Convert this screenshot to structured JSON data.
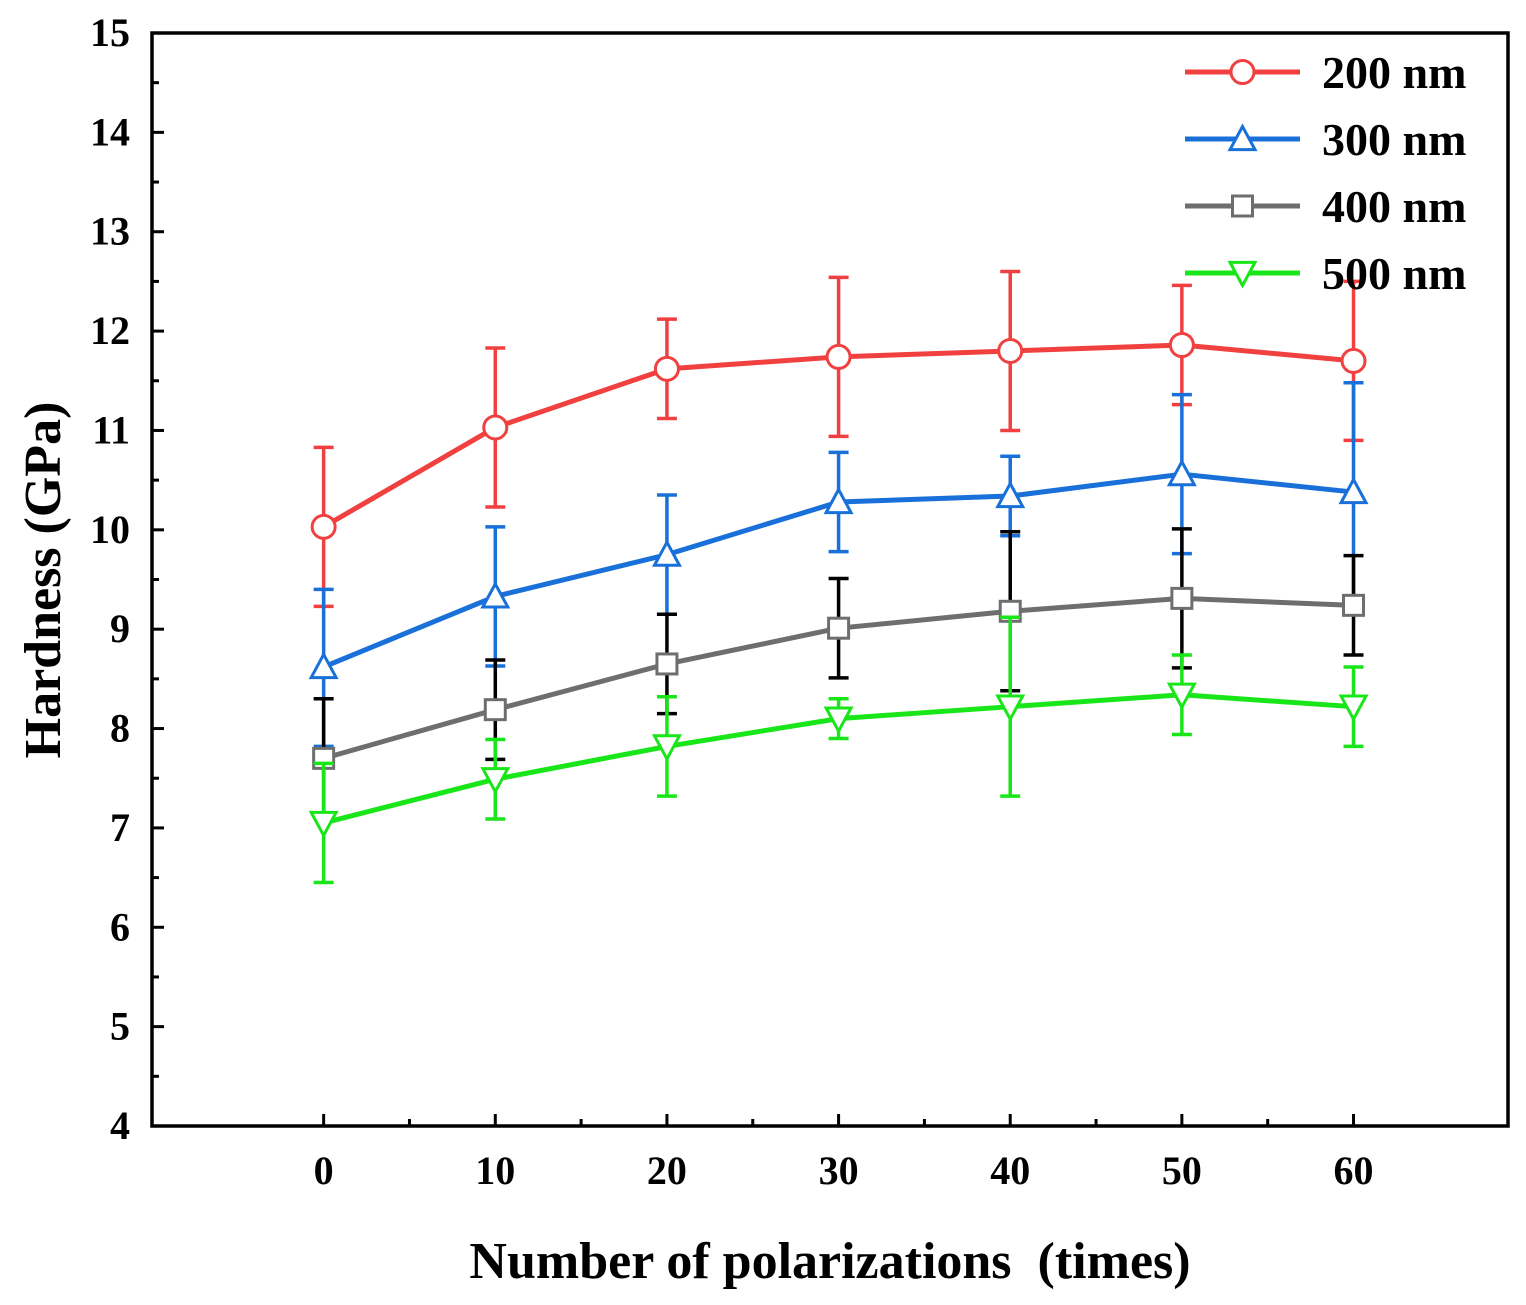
{
  "chart_data": {
    "type": "line",
    "xlabel": "Number of polarizations  (times)",
    "ylabel": "Hardness (GPa)",
    "xlim": [
      -10,
      69
    ],
    "ylim": [
      4,
      15
    ],
    "x": [
      0,
      10,
      20,
      30,
      40,
      50,
      60
    ],
    "xticks": [
      "0",
      "10",
      "20",
      "30",
      "40",
      "50",
      "60"
    ],
    "yticks": [
      "4",
      "5",
      "6",
      "7",
      "8",
      "9",
      "10",
      "11",
      "12",
      "13",
      "14",
      "15"
    ],
    "legend_position": "top-right",
    "series": [
      {
        "name": "200 nm",
        "marker": "circle",
        "color": "#f04040",
        "values": [
          10.03,
          11.03,
          11.62,
          11.74,
          11.8,
          11.86,
          11.7
        ],
        "error_upper": [
          10.83,
          11.83,
          12.12,
          12.54,
          12.6,
          12.46,
          12.5
        ],
        "error_lower": [
          9.23,
          10.23,
          11.12,
          10.94,
          11.0,
          11.26,
          10.9
        ]
      },
      {
        "name": "300 nm",
        "marker": "triangle-up",
        "color": "#1870d8",
        "values": [
          8.62,
          9.33,
          9.75,
          10.28,
          10.34,
          10.56,
          10.38
        ],
        "error_upper": [
          9.4,
          10.03,
          10.35,
          10.78,
          10.74,
          11.36,
          11.48
        ],
        "error_lower": [
          7.82,
          8.63,
          9.15,
          9.78,
          9.94,
          9.76,
          9.28
        ]
      },
      {
        "name": "400 nm",
        "marker": "square",
        "color": "#6e6e6e",
        "errorbar_color": "#000000",
        "values": [
          7.7,
          8.19,
          8.65,
          9.01,
          9.18,
          9.31,
          9.24
        ],
        "error_upper": [
          8.3,
          8.69,
          9.15,
          9.51,
          9.98,
          10.01,
          9.74
        ],
        "error_lower": [
          7.1,
          7.69,
          8.15,
          8.51,
          8.38,
          8.61,
          8.74
        ]
      },
      {
        "name": "500 nm",
        "marker": "triangle-down",
        "color": "#19e619",
        "values": [
          7.05,
          7.49,
          7.82,
          8.1,
          8.22,
          8.34,
          8.22
        ],
        "error_upper": [
          7.65,
          7.89,
          8.32,
          8.3,
          9.12,
          8.74,
          8.62
        ],
        "error_lower": [
          6.45,
          7.09,
          7.32,
          7.9,
          7.32,
          7.94,
          7.82
        ]
      }
    ]
  }
}
